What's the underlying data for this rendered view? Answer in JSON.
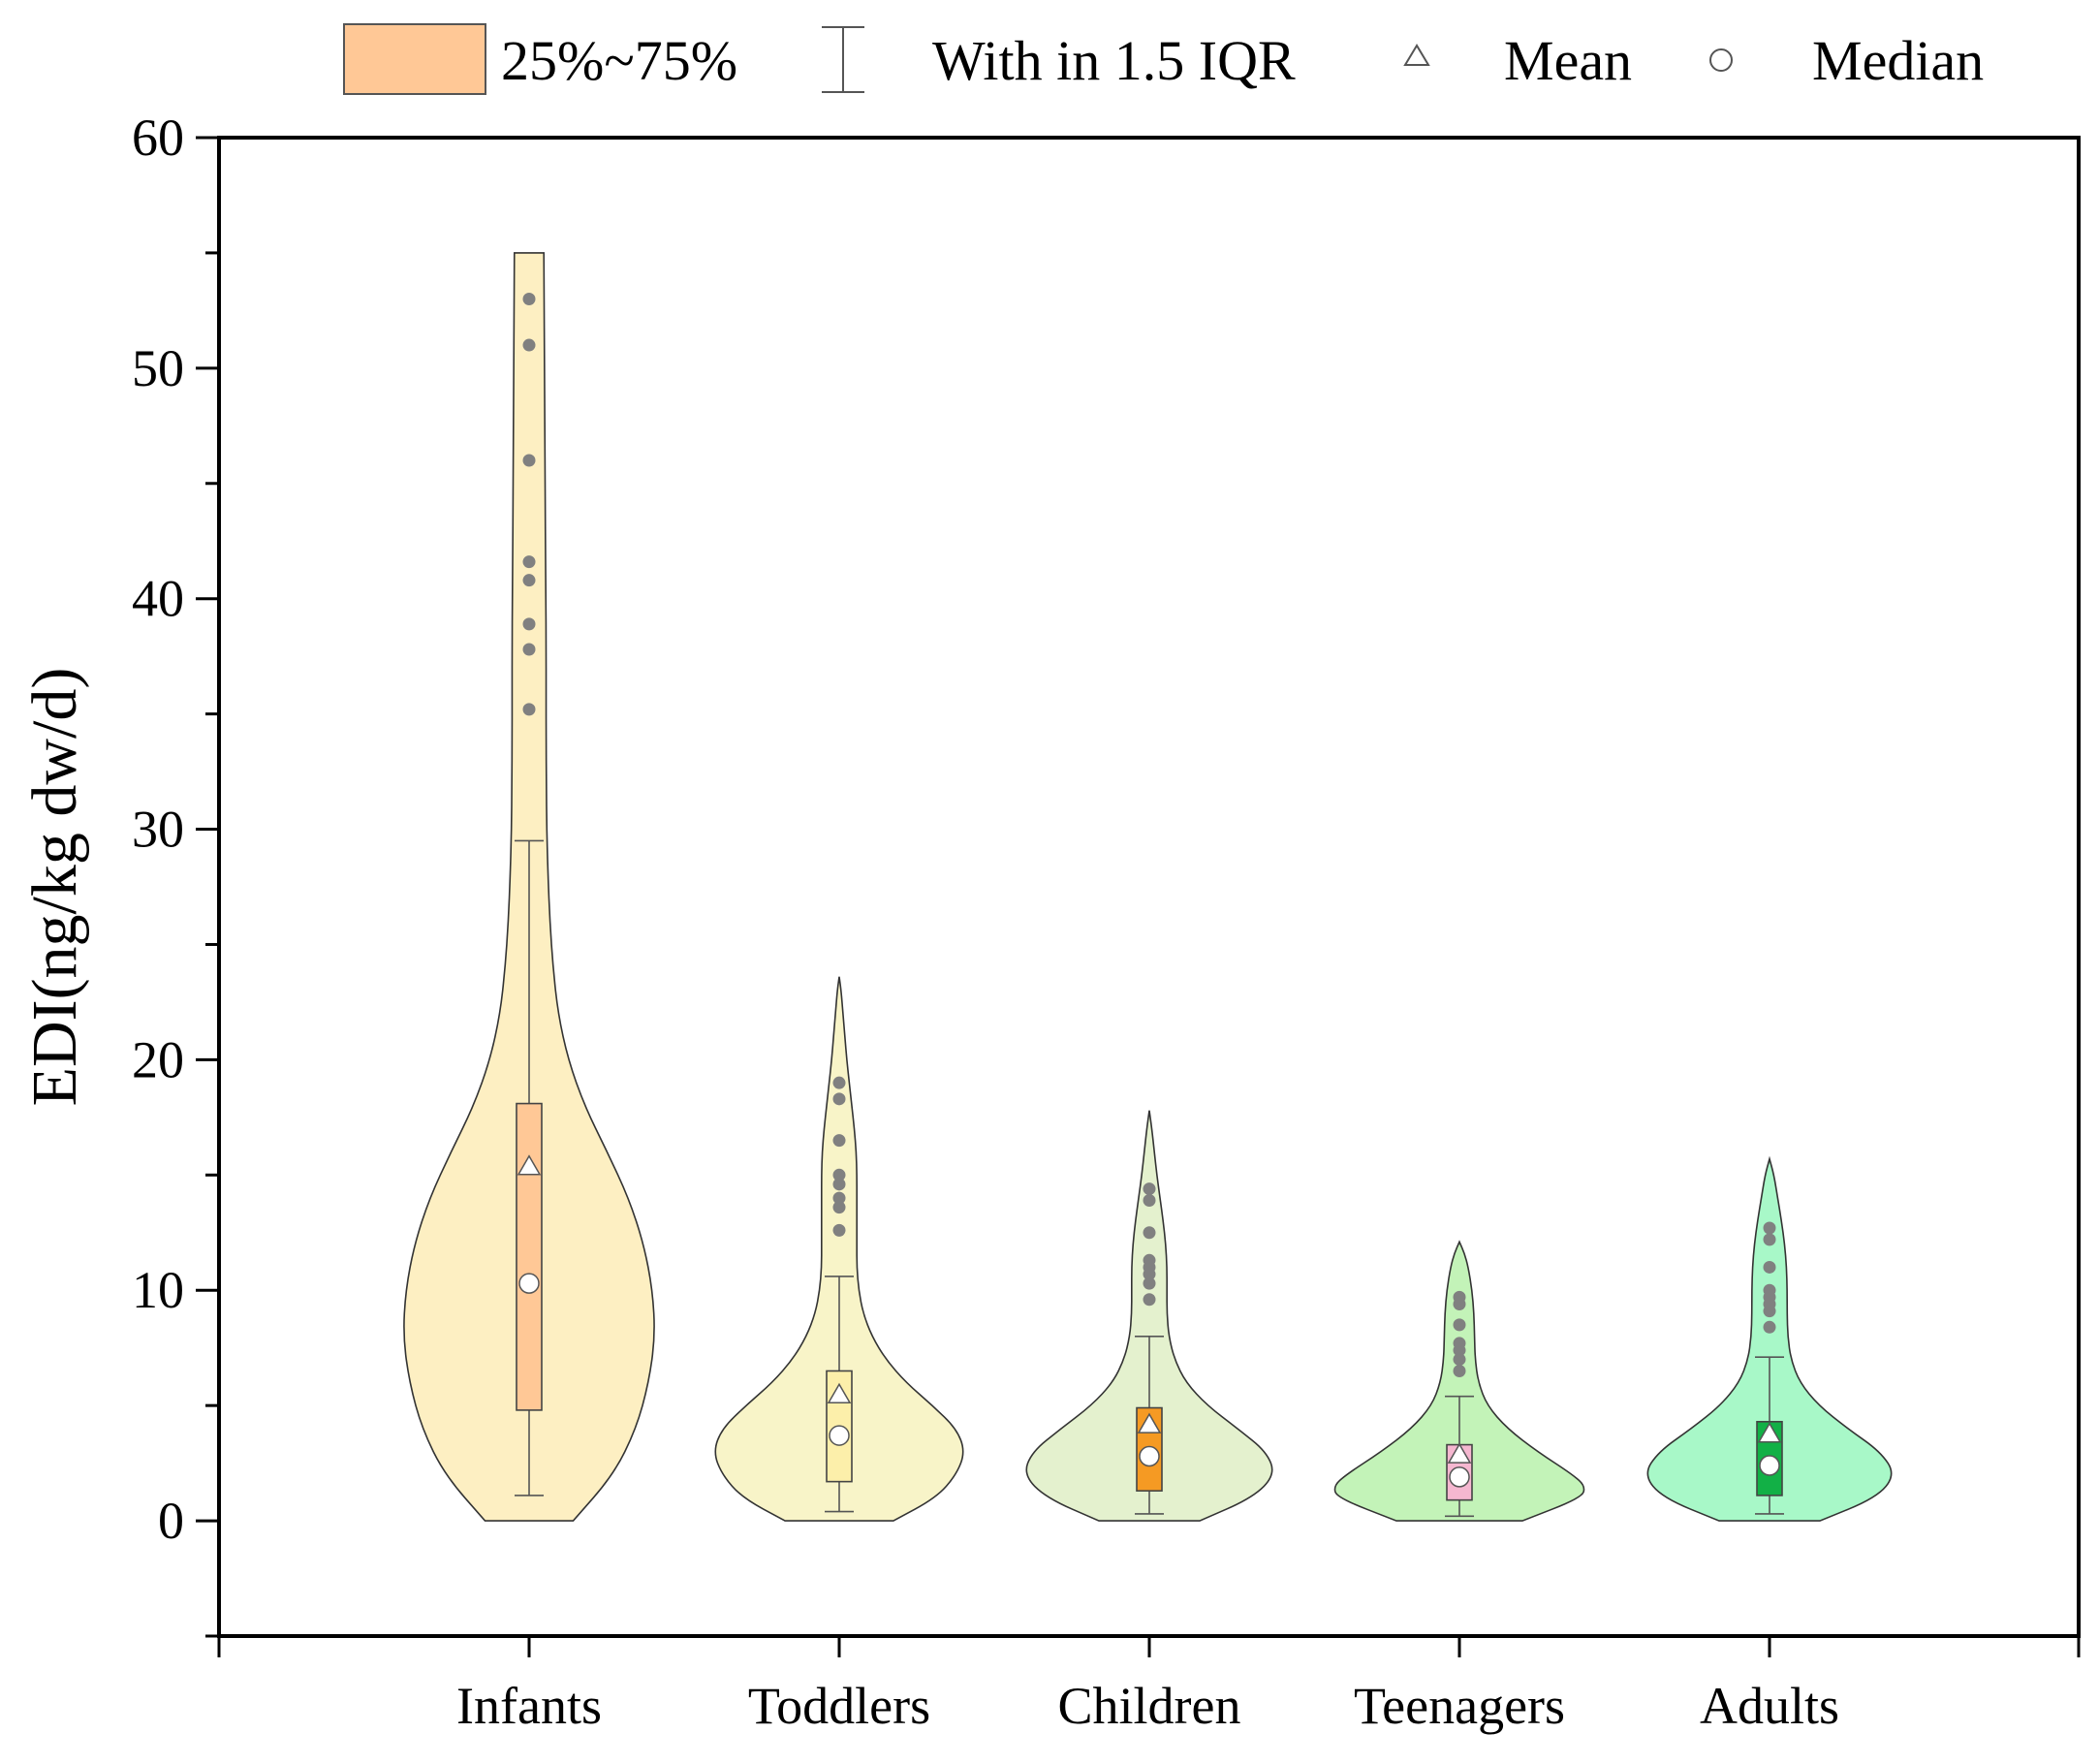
{
  "chart_data": {
    "type": "violin",
    "title": "",
    "xlabel": "",
    "ylabel": "EDI(ng/kg dw/d)",
    "ylim": [
      -5,
      60
    ],
    "yticks": [
      0,
      10,
      20,
      30,
      40,
      50,
      60
    ],
    "ytick_labels": [
      "0",
      "10",
      "20",
      "30",
      "40",
      "50",
      "60"
    ],
    "grid": false,
    "legend_position": "top",
    "legend": {
      "box_label": "25%~75%",
      "whisker_label": "With in 1.5 IQR",
      "mean_label": "Mean",
      "median_label": "Median",
      "box_color": "#FFC896"
    },
    "categories": [
      "Infants",
      "Toddlers",
      "Children",
      "Teenagers",
      "Adults"
    ],
    "series": [
      {
        "name": "Infants",
        "violin_color": "#FDEFC2",
        "box_color": "#FFC896",
        "q1": 4.8,
        "q3": 18.1,
        "median": 10.3,
        "mean": 15.4,
        "whisker_low": 1.1,
        "whisker_high": 29.5,
        "outliers": [
          35.2,
          37.8,
          38.9,
          40.8,
          41.6,
          46.0,
          51.0,
          53.0
        ],
        "density": [
          [
            0,
            0.35
          ],
          [
            2,
            0.67
          ],
          [
            4,
            0.85
          ],
          [
            6,
            0.95
          ],
          [
            8,
            1.0
          ],
          [
            10,
            0.98
          ],
          [
            12,
            0.91
          ],
          [
            14,
            0.79
          ],
          [
            16,
            0.62
          ],
          [
            18,
            0.44
          ],
          [
            20,
            0.31
          ],
          [
            22,
            0.23
          ],
          [
            24,
            0.19
          ],
          [
            26,
            0.165
          ],
          [
            28,
            0.15
          ],
          [
            30,
            0.14
          ],
          [
            32,
            0.137
          ],
          [
            34,
            0.135
          ],
          [
            36,
            0.135
          ],
          [
            38,
            0.135
          ],
          [
            40,
            0.133
          ],
          [
            42,
            0.13
          ],
          [
            44,
            0.128
          ],
          [
            46,
            0.126
          ],
          [
            48,
            0.124
          ],
          [
            50,
            0.122
          ],
          [
            52,
            0.12
          ],
          [
            54,
            0.118
          ],
          [
            55,
            0.117
          ]
        ]
      },
      {
        "name": "Toddlers",
        "violin_color": "#F8F4C8",
        "box_color": "#FCEFAA",
        "q1": 1.7,
        "q3": 6.5,
        "median": 3.7,
        "mean": 5.5,
        "whisker_low": 0.4,
        "whisker_high": 10.6,
        "outliers": [
          12.6,
          13.6,
          14.0,
          14.6,
          15.0,
          16.5,
          18.3,
          19.0
        ],
        "density": [
          [
            0,
            0.43
          ],
          [
            1,
            0.77
          ],
          [
            2,
            0.93
          ],
          [
            3,
            1.0
          ],
          [
            4,
            0.93
          ],
          [
            5,
            0.74
          ],
          [
            6,
            0.53
          ],
          [
            7,
            0.37
          ],
          [
            8,
            0.26
          ],
          [
            9,
            0.19
          ],
          [
            10,
            0.155
          ],
          [
            11,
            0.14
          ],
          [
            12,
            0.14
          ],
          [
            13,
            0.14
          ],
          [
            14,
            0.14
          ],
          [
            15,
            0.14
          ],
          [
            16,
            0.135
          ],
          [
            17,
            0.12
          ],
          [
            18,
            0.1
          ],
          [
            19,
            0.08
          ],
          [
            20,
            0.06
          ],
          [
            21,
            0.045
          ],
          [
            22,
            0.03
          ],
          [
            23,
            0.015
          ],
          [
            23.6,
            0.0
          ]
        ]
      },
      {
        "name": "Children",
        "violin_color": "#E4F1CE",
        "box_color": "#F59A23",
        "q1": 1.3,
        "q3": 4.9,
        "median": 2.8,
        "mean": 4.2,
        "whisker_low": 0.3,
        "whisker_high": 8.0,
        "outliers": [
          9.6,
          10.3,
          10.7,
          11.0,
          11.3,
          12.5,
          13.9,
          14.4
        ],
        "density": [
          [
            0,
            0.4
          ],
          [
            1,
            0.82
          ],
          [
            2,
            1.0
          ],
          [
            3,
            0.93
          ],
          [
            4,
            0.7
          ],
          [
            5,
            0.46
          ],
          [
            6,
            0.29
          ],
          [
            7,
            0.2
          ],
          [
            8,
            0.155
          ],
          [
            9,
            0.14
          ],
          [
            10,
            0.14
          ],
          [
            11,
            0.14
          ],
          [
            12,
            0.13
          ],
          [
            13,
            0.11
          ],
          [
            14,
            0.085
          ],
          [
            15,
            0.06
          ],
          [
            16,
            0.04
          ],
          [
            17,
            0.02
          ],
          [
            17.8,
            0.0
          ]
        ]
      },
      {
        "name": "Teenagers",
        "violin_color": "#C3F3B8",
        "box_color": "#F5B7D0",
        "q1": 0.9,
        "q3": 3.3,
        "median": 1.9,
        "mean": 2.9,
        "whisker_low": 0.2,
        "whisker_high": 5.4,
        "outliers": [
          6.5,
          7.0,
          7.4,
          7.7,
          8.5,
          9.4,
          9.7
        ],
        "density": [
          [
            0,
            0.5
          ],
          [
            1,
            0.97
          ],
          [
            1.5,
            1.0
          ],
          [
            2,
            0.9
          ],
          [
            3,
            0.62
          ],
          [
            4,
            0.38
          ],
          [
            5,
            0.22
          ],
          [
            6,
            0.15
          ],
          [
            7,
            0.125
          ],
          [
            8,
            0.12
          ],
          [
            9,
            0.115
          ],
          [
            10,
            0.1
          ],
          [
            11,
            0.07
          ],
          [
            11.6,
            0.04
          ],
          [
            12.1,
            0.0
          ]
        ]
      },
      {
        "name": "Adults",
        "violin_color": "#A8F8C8",
        "box_color": "#12B046",
        "q1": 1.1,
        "q3": 4.3,
        "median": 2.4,
        "mean": 3.8,
        "whisker_low": 0.3,
        "whisker_high": 7.1,
        "outliers": [
          8.4,
          9.1,
          9.4,
          9.7,
          10.0,
          11.0,
          12.2,
          12.7
        ],
        "density": [
          [
            0,
            0.4
          ],
          [
            1,
            0.85
          ],
          [
            2,
            1.0
          ],
          [
            3,
            0.88
          ],
          [
            4,
            0.62
          ],
          [
            5,
            0.39
          ],
          [
            6,
            0.24
          ],
          [
            7,
            0.17
          ],
          [
            8,
            0.145
          ],
          [
            9,
            0.14
          ],
          [
            10,
            0.14
          ],
          [
            11,
            0.135
          ],
          [
            12,
            0.12
          ],
          [
            13,
            0.095
          ],
          [
            14,
            0.065
          ],
          [
            15,
            0.035
          ],
          [
            15.7,
            0.0
          ]
        ]
      }
    ]
  }
}
